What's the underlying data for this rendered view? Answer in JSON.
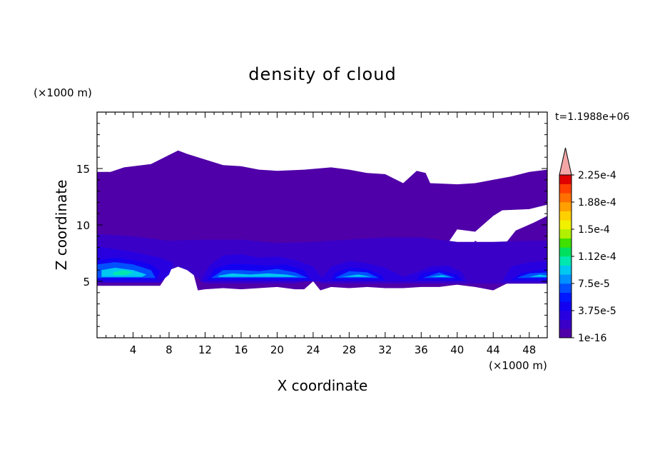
{
  "chart_data": {
    "type": "heatmap",
    "title": "density of cloud",
    "time_label": "t=1.1988e+06",
    "xlabel": "X coordinate",
    "ylabel": "Z coordinate",
    "x_unit": "(×1000 m)",
    "y_unit": "(×1000 m)",
    "xlim": [
      0,
      50
    ],
    "ylim": [
      0,
      20
    ],
    "x_ticks": [
      4,
      8,
      12,
      16,
      20,
      24,
      28,
      32,
      36,
      40,
      44,
      48
    ],
    "y_ticks": [
      5,
      10,
      15
    ],
    "colorbar": {
      "levels": [
        "#5000a8",
        "#3a00c8",
        "#2800e0",
        "#1400f0",
        "#0018ff",
        "#0050ff",
        "#0090ff",
        "#00c8f0",
        "#00e8b0",
        "#00e060",
        "#40e000",
        "#b0f000",
        "#f0f000",
        "#ffd000",
        "#ffa000",
        "#ff7000",
        "#ff4000",
        "#e00000"
      ],
      "extend_color": "#f4a6a6",
      "labels": [
        "1e-16",
        "3.75e-5",
        "7.5e-5",
        "1.12e-4",
        "1.5e-4",
        "1.88e-4",
        "2.25e-4"
      ]
    },
    "regions": [
      {
        "level": 0,
        "points": [
          [
            0,
            14.7
          ],
          [
            1.5,
            14.7
          ],
          [
            3,
            15.1
          ],
          [
            6,
            15.4
          ],
          [
            8,
            16.2
          ],
          [
            9,
            16.6
          ],
          [
            10,
            16.3
          ],
          [
            12,
            15.8
          ],
          [
            14,
            15.3
          ],
          [
            16,
            15.2
          ],
          [
            18,
            14.9
          ],
          [
            20,
            14.8
          ],
          [
            23,
            14.9
          ],
          [
            26,
            15.1
          ],
          [
            28,
            14.9
          ],
          [
            30,
            14.6
          ],
          [
            32,
            14.5
          ],
          [
            33,
            14.1
          ],
          [
            34,
            13.7
          ],
          [
            35.5,
            14.8
          ],
          [
            36.5,
            14.6
          ],
          [
            37,
            13.7
          ],
          [
            40,
            13.6
          ],
          [
            42,
            13.7
          ],
          [
            44,
            14.0
          ],
          [
            46,
            14.3
          ],
          [
            48,
            14.7
          ],
          [
            50,
            14.9
          ],
          [
            50,
            11.8
          ],
          [
            48,
            11.4
          ],
          [
            45,
            11.3
          ],
          [
            44,
            10.8
          ],
          [
            42,
            9.4
          ],
          [
            40,
            9.6
          ],
          [
            38.8,
            8.2
          ],
          [
            40.5,
            7.2
          ],
          [
            42,
            8.6
          ],
          [
            43.5,
            7.8
          ],
          [
            44,
            7.0
          ],
          [
            45.5,
            8.5
          ],
          [
            46.5,
            9.5
          ],
          [
            48.5,
            10.2
          ],
          [
            50,
            10.8
          ],
          [
            50,
            5.0
          ],
          [
            48,
            5.4
          ],
          [
            46,
            5.0
          ],
          [
            44,
            4.2
          ],
          [
            42,
            4.5
          ],
          [
            40,
            4.7
          ],
          [
            38,
            4.5
          ],
          [
            36,
            4.5
          ],
          [
            34,
            4.4
          ],
          [
            32,
            4.4
          ],
          [
            30,
            4.5
          ],
          [
            28,
            4.4
          ],
          [
            26,
            4.5
          ],
          [
            24.8,
            4.2
          ],
          [
            24,
            5.0
          ],
          [
            23,
            4.3
          ],
          [
            22,
            4.3
          ],
          [
            20,
            4.5
          ],
          [
            18,
            4.4
          ],
          [
            16,
            4.3
          ],
          [
            14,
            4.4
          ],
          [
            12,
            4.3
          ],
          [
            11.2,
            4.2
          ],
          [
            10.8,
            5.4
          ],
          [
            10.5,
            6.6
          ],
          [
            9.5,
            6.2
          ],
          [
            8.5,
            7.1
          ],
          [
            8,
            6.5
          ],
          [
            7.5,
            5.2
          ],
          [
            7,
            4.6
          ],
          [
            0,
            4.6
          ]
        ]
      },
      {
        "level": 0,
        "points": [
          [
            0,
            11.2
          ],
          [
            6,
            11.5
          ],
          [
            8,
            11.0
          ],
          [
            9.5,
            10.5
          ],
          [
            9.8,
            9.8
          ],
          [
            8,
            9.1
          ],
          [
            6,
            9.2
          ],
          [
            4,
            9.5
          ],
          [
            2,
            9.5
          ],
          [
            0,
            9.6
          ]
        ]
      },
      {
        "level": 1,
        "points": [
          [
            0,
            9.2
          ],
          [
            4,
            9.0
          ],
          [
            8,
            8.6
          ],
          [
            12,
            8.7
          ],
          [
            16,
            8.7
          ],
          [
            20,
            8.4
          ],
          [
            24,
            8.5
          ],
          [
            28,
            8.7
          ],
          [
            32,
            8.9
          ],
          [
            36,
            8.9
          ],
          [
            40,
            8.5
          ],
          [
            44,
            8.5
          ],
          [
            48,
            8.6
          ],
          [
            50,
            8.6
          ],
          [
            50,
            4.8
          ],
          [
            48,
            4.8
          ],
          [
            46,
            4.8
          ],
          [
            44,
            4.8
          ],
          [
            40,
            4.8
          ],
          [
            36,
            4.8
          ],
          [
            32,
            4.8
          ],
          [
            28,
            4.8
          ],
          [
            25,
            4.8
          ],
          [
            24,
            5.2
          ],
          [
            22,
            4.8
          ],
          [
            12,
            4.8
          ],
          [
            11,
            5.4
          ],
          [
            10,
            6.0
          ],
          [
            9,
            6.3
          ],
          [
            8,
            6.0
          ],
          [
            7,
            4.9
          ],
          [
            0,
            4.9
          ]
        ]
      },
      {
        "level": 2,
        "points": [
          [
            0,
            8.1
          ],
          [
            4,
            7.6
          ],
          [
            7,
            7.1
          ],
          [
            8.5,
            6.6
          ],
          [
            8,
            5.6
          ],
          [
            7,
            4.9
          ],
          [
            0,
            4.9
          ]
        ]
      },
      {
        "level": 2,
        "points": [
          [
            11.5,
            5.0
          ],
          [
            12.5,
            6.4
          ],
          [
            14,
            7.3
          ],
          [
            16,
            7.4
          ],
          [
            18,
            7.1
          ],
          [
            20,
            7.2
          ],
          [
            22,
            6.9
          ],
          [
            24,
            6.3
          ],
          [
            25,
            5.3
          ],
          [
            26,
            6.3
          ],
          [
            28,
            6.8
          ],
          [
            30,
            6.6
          ],
          [
            32,
            6.2
          ],
          [
            34,
            5.4
          ],
          [
            35.5,
            5.8
          ],
          [
            37,
            6.3
          ],
          [
            39,
            6.4
          ],
          [
            40.5,
            5.8
          ],
          [
            41,
            5.0
          ]
        ]
      },
      {
        "level": 2,
        "points": [
          [
            45,
            5.0
          ],
          [
            46,
            6.3
          ],
          [
            48,
            6.7
          ],
          [
            50,
            6.8
          ],
          [
            50,
            5.0
          ]
        ]
      },
      {
        "level": 3,
        "points": [
          [
            0,
            6.9
          ],
          [
            2,
            7.1
          ],
          [
            4,
            6.9
          ],
          [
            6,
            6.5
          ],
          [
            7,
            5.9
          ],
          [
            6.6,
            5.1
          ],
          [
            0,
            5.1
          ]
        ]
      },
      {
        "level": 3,
        "points": [
          [
            12.2,
            5.1
          ],
          [
            13,
            6.1
          ],
          [
            15,
            6.6
          ],
          [
            17,
            6.5
          ],
          [
            19,
            6.4
          ],
          [
            21,
            6.5
          ],
          [
            23,
            6.0
          ],
          [
            23.8,
            5.1
          ]
        ]
      },
      {
        "level": 3,
        "points": [
          [
            26,
            5.1
          ],
          [
            26.5,
            5.8
          ],
          [
            28,
            6.2
          ],
          [
            30,
            6.1
          ],
          [
            31.5,
            5.6
          ],
          [
            32,
            5.1
          ]
        ]
      },
      {
        "level": 3,
        "points": [
          [
            35.5,
            5.1
          ],
          [
            36,
            5.7
          ],
          [
            38,
            6.0
          ],
          [
            40,
            5.6
          ],
          [
            40.5,
            5.1
          ]
        ]
      },
      {
        "level": 3,
        "points": [
          [
            46,
            5.1
          ],
          [
            47,
            5.7
          ],
          [
            49,
            6.0
          ],
          [
            50,
            6.1
          ],
          [
            50,
            5.1
          ]
        ]
      },
      {
        "level": 5,
        "points": [
          [
            0,
            6.5
          ],
          [
            2,
            6.7
          ],
          [
            4,
            6.5
          ],
          [
            6,
            6.0
          ],
          [
            6.5,
            5.3
          ],
          [
            0,
            5.3
          ]
        ]
      },
      {
        "level": 5,
        "points": [
          [
            12.7,
            5.3
          ],
          [
            14,
            6.0
          ],
          [
            16,
            6.0
          ],
          [
            18,
            5.9
          ],
          [
            20,
            6.1
          ],
          [
            22,
            5.8
          ],
          [
            23.4,
            5.3
          ]
        ]
      },
      {
        "level": 5,
        "points": [
          [
            26.4,
            5.3
          ],
          [
            28,
            5.9
          ],
          [
            30,
            5.8
          ],
          [
            31.3,
            5.3
          ]
        ]
      },
      {
        "level": 5,
        "points": [
          [
            36.2,
            5.3
          ],
          [
            38,
            5.8
          ],
          [
            39.8,
            5.3
          ]
        ]
      },
      {
        "level": 5,
        "points": [
          [
            46.6,
            5.3
          ],
          [
            48,
            5.7
          ],
          [
            50,
            5.8
          ],
          [
            50,
            5.3
          ]
        ]
      },
      {
        "level": 7,
        "points": [
          [
            0.5,
            6.0
          ],
          [
            2,
            6.2
          ],
          [
            4,
            6.0
          ],
          [
            5.5,
            5.6
          ],
          [
            5,
            5.4
          ],
          [
            0.5,
            5.4
          ]
        ]
      },
      {
        "level": 7,
        "points": [
          [
            13.5,
            5.5
          ],
          [
            15,
            5.7
          ],
          [
            17,
            5.6
          ],
          [
            19,
            5.7
          ],
          [
            21,
            5.6
          ],
          [
            22.5,
            5.4
          ],
          [
            13.5,
            5.4
          ]
        ]
      },
      {
        "level": 7,
        "points": [
          [
            27.2,
            5.4
          ],
          [
            29,
            5.6
          ],
          [
            30.5,
            5.4
          ]
        ]
      },
      {
        "level": 7,
        "points": [
          [
            37,
            5.4
          ],
          [
            38.3,
            5.55
          ],
          [
            39.3,
            5.4
          ]
        ]
      },
      {
        "level": 7,
        "points": [
          [
            48,
            5.4
          ],
          [
            49.2,
            5.6
          ],
          [
            50,
            5.5
          ],
          [
            50,
            5.4
          ]
        ]
      },
      {
        "level": 8,
        "points": [
          [
            1.8,
            5.8
          ],
          [
            3,
            6.0
          ],
          [
            4,
            5.8
          ],
          [
            3.2,
            5.55
          ],
          [
            1.8,
            5.55
          ]
        ]
      }
    ]
  }
}
